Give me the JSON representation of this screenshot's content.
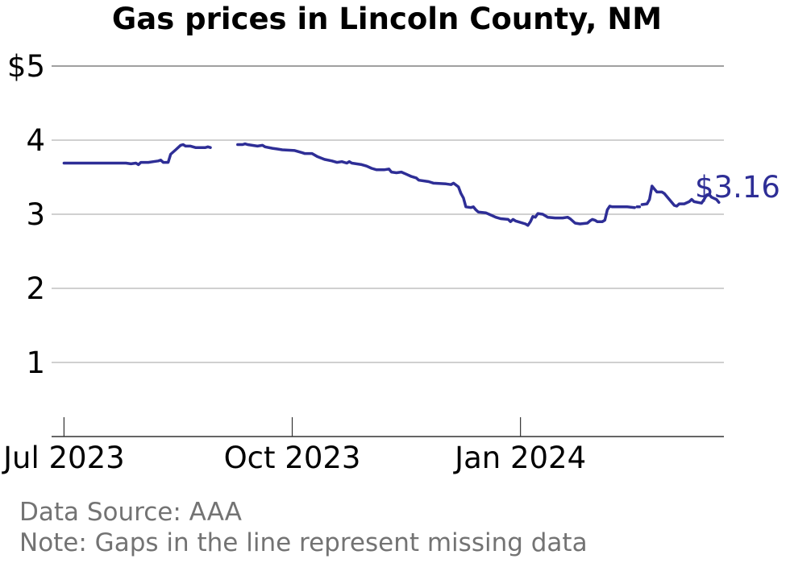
{
  "chart_data": {
    "type": "line",
    "title": "Gas prices in Lincoln County, NM",
    "xlabel": "",
    "ylabel": "",
    "ylim": [
      0,
      5
    ],
    "xlim": [
      "2023-06-26",
      "2024-03-23"
    ],
    "yticks": [
      {
        "value": 1,
        "label": "1"
      },
      {
        "value": 2,
        "label": "2"
      },
      {
        "value": 3,
        "label": "3"
      },
      {
        "value": 4,
        "label": "4"
      },
      {
        "value": 5,
        "label": "$5"
      }
    ],
    "xticks": [
      {
        "date": "2023-07-01",
        "label": "Jul 2023"
      },
      {
        "date": "2023-10-01",
        "label": "Oct 2023"
      },
      {
        "date": "2024-01-01",
        "label": "Jan 2024"
      }
    ],
    "grid": true,
    "end_label": "$3.16",
    "colors": {
      "series": "#2e2e96",
      "text": "#000000",
      "note": "#737373"
    },
    "series": [
      {
        "segments": [
          [
            [
              "2023-07-01",
              3.69
            ],
            [
              "2023-07-06",
              3.69
            ],
            [
              "2023-07-11",
              3.69
            ],
            [
              "2023-07-16",
              3.69
            ],
            [
              "2023-07-21",
              3.69
            ],
            [
              "2023-07-26",
              3.69
            ],
            [
              "2023-07-28",
              3.68
            ],
            [
              "2023-07-30",
              3.69
            ],
            [
              "2023-07-31",
              3.67
            ],
            [
              "2023-08-01",
              3.7
            ],
            [
              "2023-08-04",
              3.7
            ],
            [
              "2023-08-06",
              3.71
            ],
            [
              "2023-08-08",
              3.72
            ],
            [
              "2023-08-09",
              3.73
            ],
            [
              "2023-08-10",
              3.7
            ],
            [
              "2023-08-12",
              3.7
            ],
            [
              "2023-08-13",
              3.81
            ],
            [
              "2023-08-15",
              3.87
            ],
            [
              "2023-08-17",
              3.93
            ],
            [
              "2023-08-18",
              3.94
            ],
            [
              "2023-08-19",
              3.92
            ],
            [
              "2023-08-21",
              3.92
            ],
            [
              "2023-08-23",
              3.9
            ],
            [
              "2023-08-27",
              3.9
            ],
            [
              "2023-08-28",
              3.91
            ],
            [
              "2023-08-29",
              3.9
            ]
          ],
          [
            [
              "2023-09-09",
              3.94
            ],
            [
              "2023-09-11",
              3.94
            ],
            [
              "2023-09-12",
              3.95
            ],
            [
              "2023-09-13",
              3.94
            ],
            [
              "2023-09-17",
              3.92
            ],
            [
              "2023-09-19",
              3.93
            ],
            [
              "2023-09-20",
              3.91
            ],
            [
              "2023-09-23",
              3.89
            ],
            [
              "2023-09-25",
              3.88
            ],
            [
              "2023-09-27",
              3.87
            ],
            [
              "2023-10-02",
              3.86
            ],
            [
              "2023-10-05",
              3.83
            ],
            [
              "2023-10-06",
              3.82
            ],
            [
              "2023-10-09",
              3.82
            ],
            [
              "2023-10-11",
              3.78
            ],
            [
              "2023-10-14",
              3.74
            ],
            [
              "2023-10-17",
              3.72
            ],
            [
              "2023-10-19",
              3.7
            ],
            [
              "2023-10-21",
              3.71
            ],
            [
              "2023-10-23",
              3.69
            ],
            [
              "2023-10-24",
              3.71
            ],
            [
              "2023-10-25",
              3.69
            ],
            [
              "2023-10-29",
              3.67
            ],
            [
              "2023-10-31",
              3.65
            ],
            [
              "2023-11-02",
              3.62
            ],
            [
              "2023-11-04",
              3.6
            ],
            [
              "2023-11-07",
              3.6
            ],
            [
              "2023-11-09",
              3.61
            ],
            [
              "2023-11-10",
              3.57
            ],
            [
              "2023-11-12",
              3.56
            ],
            [
              "2023-11-14",
              3.57
            ],
            [
              "2023-11-16",
              3.54
            ],
            [
              "2023-11-18",
              3.51
            ],
            [
              "2023-11-20",
              3.49
            ],
            [
              "2023-11-21",
              3.46
            ],
            [
              "2023-11-25",
              3.44
            ],
            [
              "2023-11-27",
              3.42
            ],
            [
              "2023-12-02",
              3.41
            ],
            [
              "2023-12-04",
              3.4
            ],
            [
              "2023-12-05",
              3.42
            ],
            [
              "2023-12-07",
              3.37
            ],
            [
              "2023-12-08",
              3.28
            ],
            [
              "2023-12-09",
              3.22
            ],
            [
              "2023-12-10",
              3.1
            ],
            [
              "2023-12-12",
              3.09
            ],
            [
              "2023-12-13",
              3.1
            ],
            [
              "2023-12-14",
              3.06
            ],
            [
              "2023-12-15",
              3.03
            ],
            [
              "2023-12-18",
              3.02
            ],
            [
              "2023-12-20",
              2.99
            ],
            [
              "2023-12-22",
              2.96
            ],
            [
              "2023-12-24",
              2.94
            ],
            [
              "2023-12-27",
              2.93
            ],
            [
              "2023-12-28",
              2.9
            ],
            [
              "2023-12-29",
              2.93
            ],
            [
              "2023-12-30",
              2.91
            ],
            [
              "2024-01-03",
              2.87
            ],
            [
              "2024-01-04",
              2.85
            ],
            [
              "2024-01-05",
              2.9
            ],
            [
              "2024-01-06",
              2.97
            ],
            [
              "2024-01-07",
              2.96
            ],
            [
              "2024-01-08",
              3.01
            ],
            [
              "2024-01-10",
              3.0
            ],
            [
              "2024-01-12",
              2.96
            ],
            [
              "2024-01-15",
              2.95
            ],
            [
              "2024-01-18",
              2.95
            ],
            [
              "2024-01-20",
              2.96
            ],
            [
              "2024-01-21",
              2.94
            ],
            [
              "2024-01-23",
              2.88
            ],
            [
              "2024-01-25",
              2.87
            ],
            [
              "2024-01-28",
              2.88
            ],
            [
              "2024-01-29",
              2.91
            ],
            [
              "2024-01-30",
              2.93
            ],
            [
              "2024-01-31",
              2.92
            ],
            [
              "2024-02-01",
              2.9
            ],
            [
              "2024-02-03",
              2.9
            ],
            [
              "2024-02-04",
              2.92
            ],
            [
              "2024-02-05",
              3.06
            ],
            [
              "2024-02-06",
              3.11
            ],
            [
              "2024-02-07",
              3.1
            ],
            [
              "2024-02-10",
              3.1
            ],
            [
              "2024-02-13",
              3.1
            ],
            [
              "2024-02-16",
              3.09
            ]
          ],
          [
            [
              "2024-02-17",
              3.1
            ]
          ],
          [
            [
              "2024-02-19",
              3.13
            ],
            [
              "2024-02-21",
              3.14
            ],
            [
              "2024-02-22",
              3.2
            ],
            [
              "2024-02-23",
              3.38
            ],
            [
              "2024-02-24",
              3.34
            ],
            [
              "2024-02-25",
              3.3
            ],
            [
              "2024-02-27",
              3.3
            ],
            [
              "2024-02-28",
              3.28
            ],
            [
              "2024-03-01",
              3.2
            ],
            [
              "2024-03-03",
              3.12
            ],
            [
              "2024-03-04",
              3.11
            ],
            [
              "2024-03-05",
              3.14
            ],
            [
              "2024-03-07",
              3.14
            ],
            [
              "2024-03-09",
              3.17
            ],
            [
              "2024-03-10",
              3.2
            ],
            [
              "2024-03-11",
              3.17
            ],
            [
              "2024-03-14",
              3.15
            ],
            [
              "2024-03-15",
              3.2
            ],
            [
              "2024-03-16",
              3.26
            ],
            [
              "2024-03-17",
              3.27
            ],
            [
              "2024-03-18",
              3.23
            ],
            [
              "2024-03-20",
              3.2
            ],
            [
              "2024-03-21",
              3.16
            ]
          ]
        ]
      }
    ]
  },
  "notes": {
    "source": "Data Source: AAA",
    "gaps": "Note: Gaps in the line represent missing data"
  }
}
